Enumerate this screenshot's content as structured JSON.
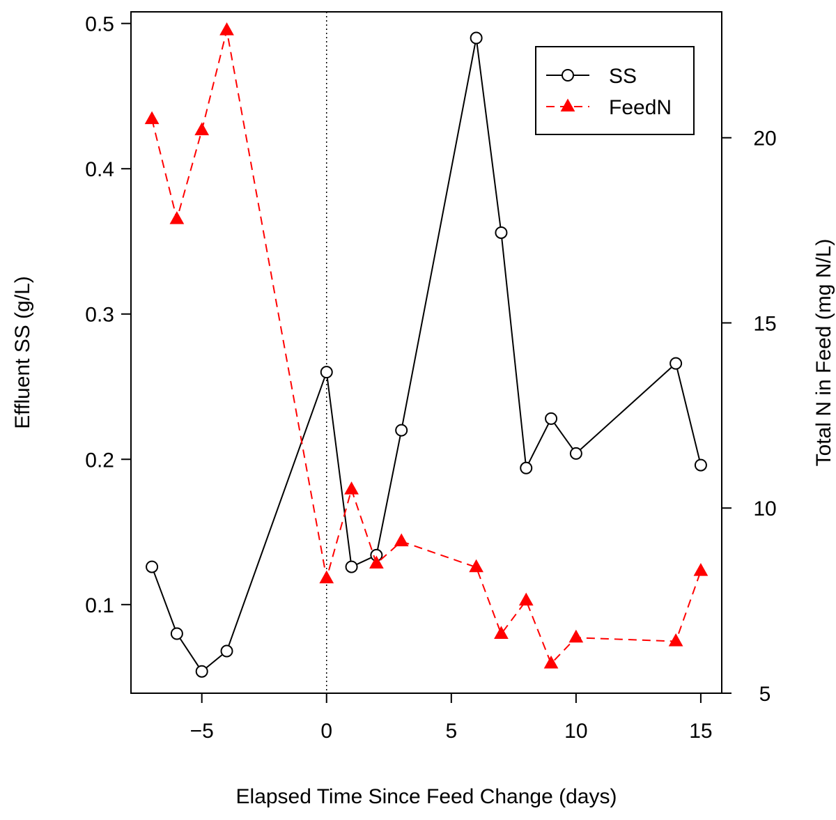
{
  "chart_data": {
    "type": "line",
    "title": "",
    "xlabel": "Elapsed Time Since Feed Change (days)",
    "ylabel": "Effluent SS (g/L)",
    "y2label": "Total N in Feed (mg N/L)",
    "xlim": [
      -7.84,
      15.84
    ],
    "ylim": [
      0.039,
      0.508
    ],
    "y2lim": [
      5,
      23.4
    ],
    "x_ticks": [
      -5,
      0,
      5,
      10,
      15
    ],
    "x_tick_labels": [
      "−5",
      "0",
      "5",
      "10",
      "15"
    ],
    "y_ticks": [
      0.1,
      0.2,
      0.3,
      0.4,
      0.5
    ],
    "y_tick_labels": [
      "0.1",
      "0.2",
      "0.3",
      "0.4",
      "0.5"
    ],
    "y2_ticks": [
      5,
      10,
      15,
      20
    ],
    "y2_tick_labels": [
      "5",
      "10",
      "15",
      "20"
    ],
    "reference_line": {
      "x": 0,
      "style": "dotted"
    },
    "legend_position": "top-right",
    "series": [
      {
        "name": "SS",
        "axis": "left",
        "color": "#000000",
        "line": "solid",
        "marker": "open-circle",
        "x": [
          -7,
          -6,
          -5,
          -4,
          0,
          1,
          2,
          3,
          6,
          7,
          8,
          9,
          10,
          14,
          15
        ],
        "y": [
          0.126,
          0.08,
          0.054,
          0.068,
          0.26,
          0.126,
          0.134,
          0.22,
          0.49,
          0.356,
          0.194,
          0.228,
          0.204,
          0.266,
          0.196
        ]
      },
      {
        "name": "FeedN",
        "axis": "right",
        "color": "#ff0000",
        "line": "dashed",
        "marker": "filled-triangle",
        "x": [
          -7,
          -6,
          -5,
          -4,
          0,
          1,
          2,
          3,
          6,
          7,
          8,
          9,
          10,
          14,
          15
        ],
        "y": [
          20.5,
          17.8,
          20.2,
          22.9,
          8.1,
          10.5,
          8.5,
          9.1,
          8.4,
          6.6,
          7.5,
          5.8,
          6.5,
          6.4,
          8.3
        ]
      }
    ]
  }
}
